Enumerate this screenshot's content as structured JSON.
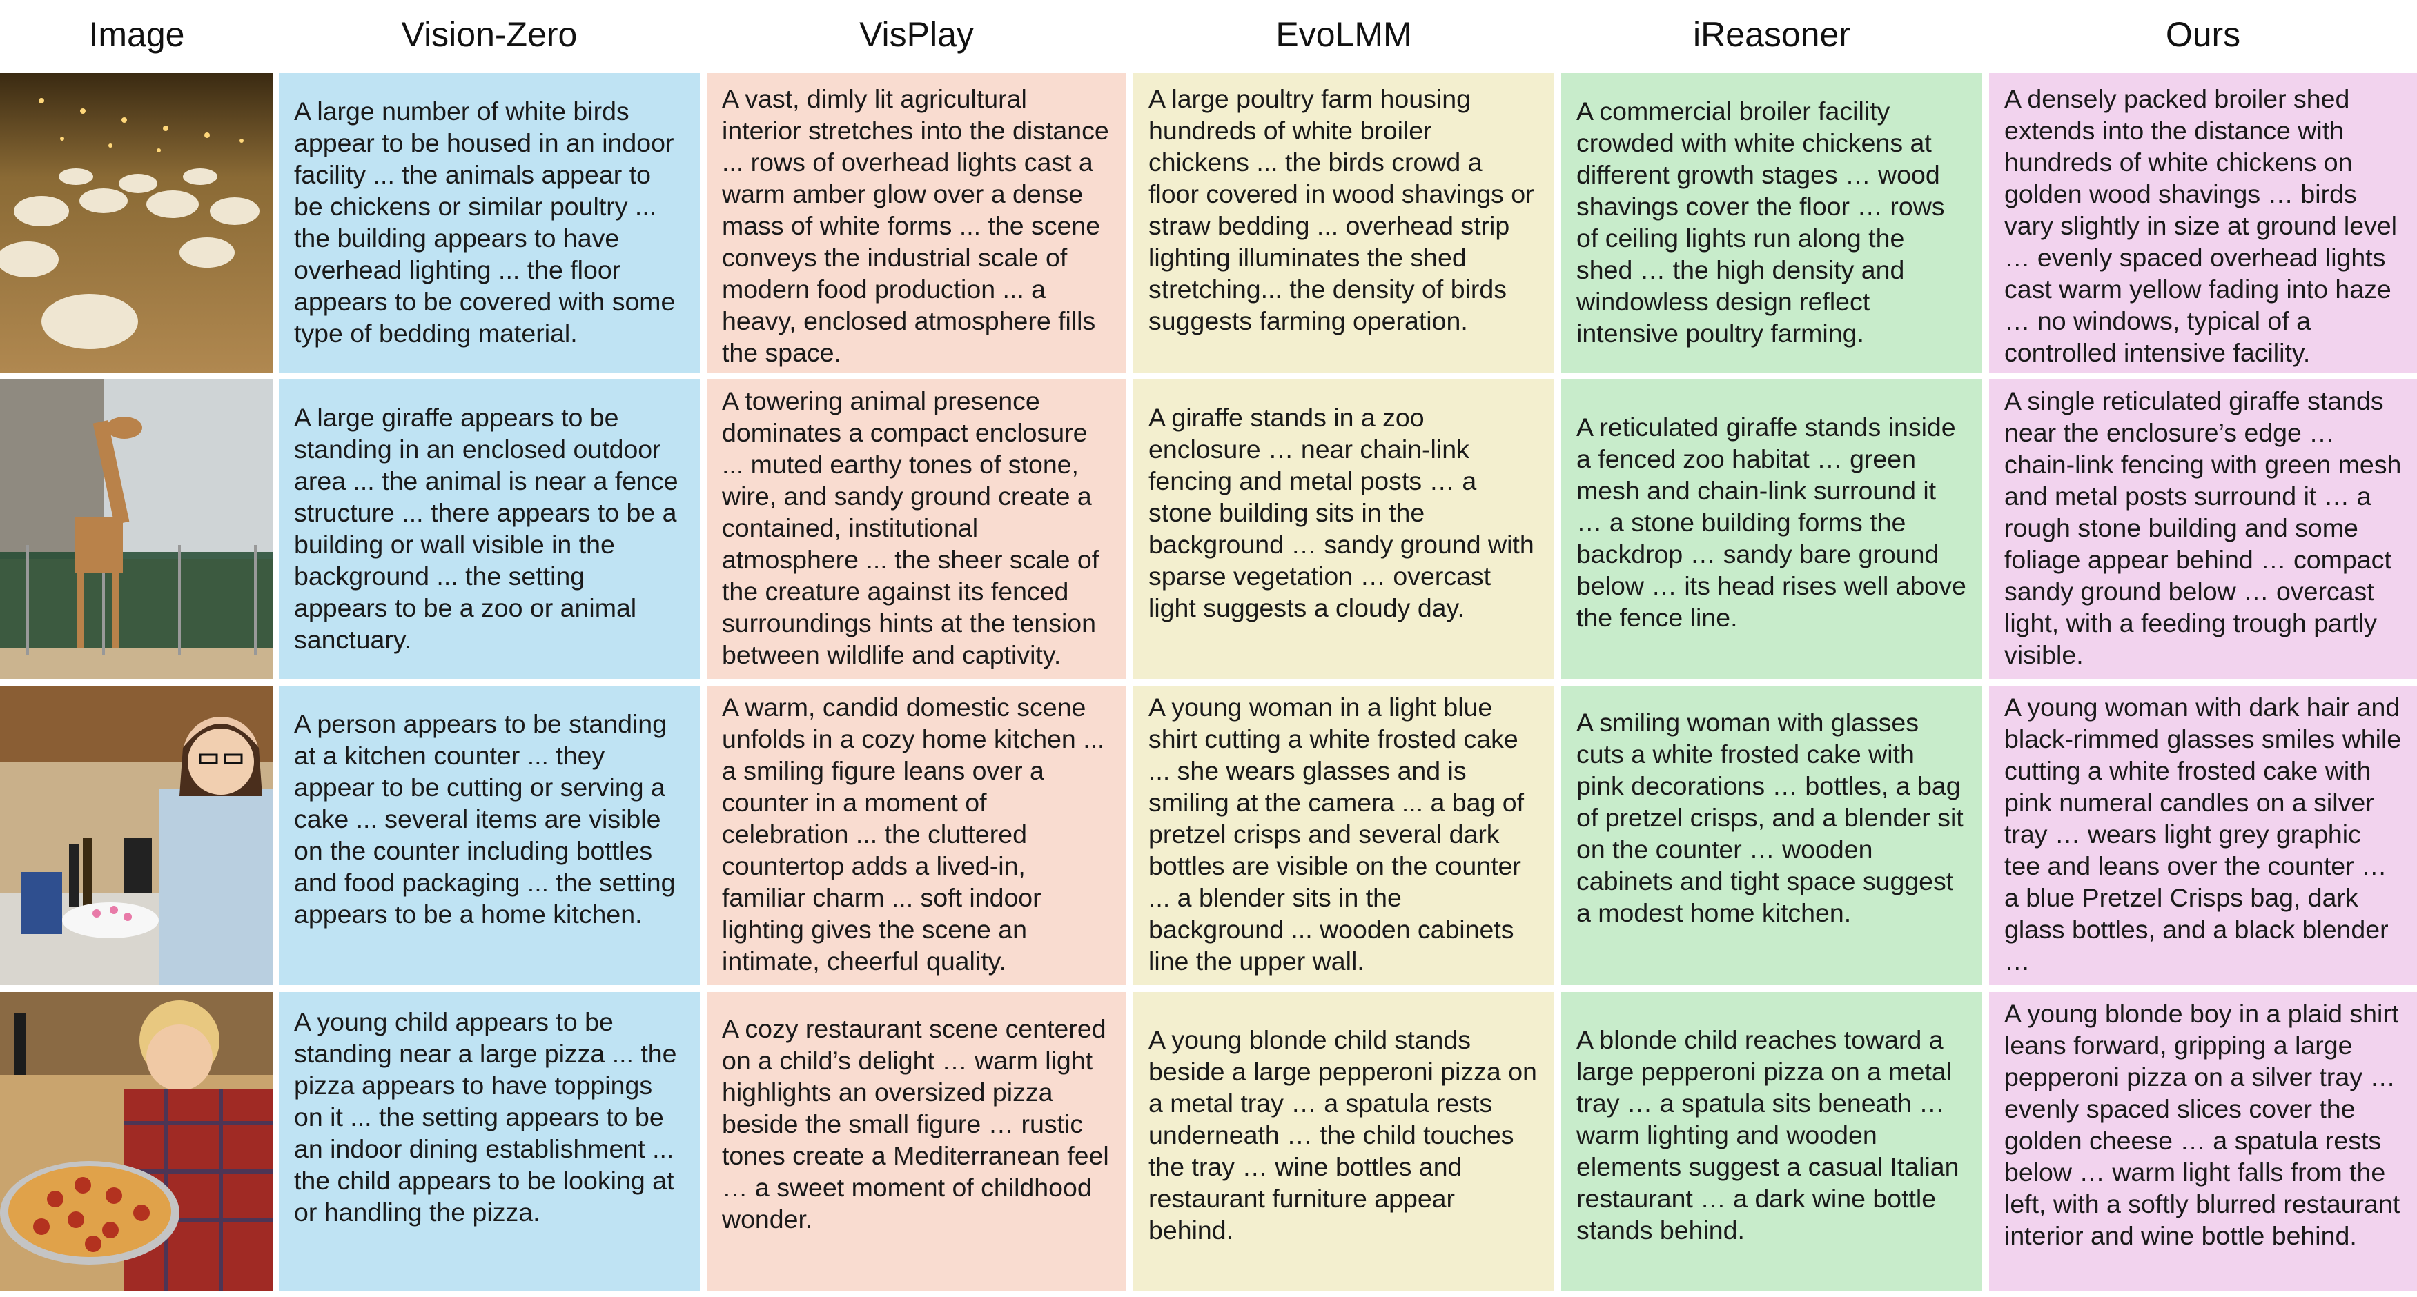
{
  "headers": [
    "Image",
    "Vision-Zero",
    "VisPlay",
    "EvoLMM",
    "iReasoner",
    "Ours"
  ],
  "colors": {
    "vision_zero": "#bfe3f3",
    "visplay": "#f9dcd0",
    "evolmm": "#f3efcf",
    "ireasoner": "#c8eccb",
    "ours": "#f2d3ee"
  },
  "rows": [
    {
      "image": "poultry-farm-photo",
      "cells": [
        "A large number of white birds appear to be housed in an indoor facility ... the animals appear to be chickens or similar poultry ... the building appears to have overhead lighting ... the floor appears to be covered with some type of bedding material.",
        "A vast, dimly lit agricultural interior stretches into the distance ... rows of overhead lights cast a warm amber glow over a dense mass of white forms ... the scene conveys the industrial scale of modern food production ... a heavy, enclosed atmosphere fills the space.",
        "A large poultry farm housing hundreds of white broiler chickens ... the birds crowd a floor covered in wood shavings or straw bedding ... overhead strip lighting illuminates the shed stretching... the density of birds suggests farming operation.",
        "A commercial broiler facility crowded with white chickens at different growth stages … wood shavings cover the floor … rows of ceiling lights run along the shed … the high density and windowless design reflect intensive poultry farming.",
        "A densely packed broiler shed extends into the distance with hundreds of white chickens on golden wood shavings … birds vary slightly in size at ground level … evenly spaced overhead lights cast warm yellow fading into haze … no windows, typical of a controlled intensive facility."
      ]
    },
    {
      "image": "giraffe-zoo-photo",
      "cells": [
        "A large giraffe appears to be standing in an enclosed outdoor area ... the animal is near a fence structure ... there appears to be a building or wall visible in the background ... the setting appears to be a zoo or animal sanctuary.",
        "A towering animal presence dominates a compact enclosure ... muted earthy tones of stone, wire, and sandy ground create a contained, institutional atmosphere ... the sheer scale of the creature against its fenced surroundings hints at the tension between wildlife and captivity.",
        "A giraffe stands in a zoo enclosure … near chain-link fencing and metal posts … a stone building sits in the background … sandy ground with sparse vegetation … overcast light suggests a cloudy day.",
        "A reticulated giraffe stands inside a fenced zoo habitat … green mesh and chain-link surround it … a stone building forms the backdrop … sandy bare ground below … its head rises well above the fence line.",
        "A single reticulated giraffe stands near the enclosure’s edge … chain-link fencing with green mesh and metal posts surround it … a rough stone building and some foliage appear behind … compact sandy ground below … overcast light, with a feeding trough partly visible."
      ]
    },
    {
      "image": "woman-cake-kitchen-photo",
      "cells": [
        "A person appears to be standing at a kitchen counter ... they appear to be cutting or serving a cake ... several items are visible on the counter including bottles and food packaging ... the setting appears to be a home kitchen.",
        "A warm, candid domestic scene unfolds in a cozy home kitchen ... a smiling figure leans over a counter in a moment of celebration ... the cluttered countertop adds a lived-in, familiar charm ... soft indoor lighting gives the scene an intimate, cheerful quality.",
        "A young woman in a light blue shirt cutting a white frosted cake ... she wears glasses and is smiling at the camera ... a bag of pretzel crisps and several dark bottles are visible on the counter ... a blender sits in the background ... wooden cabinets line the upper wall.",
        "A smiling woman with glasses cuts a white frosted cake with pink decorations … bottles, a bag of pretzel crisps, and a blender sit on the counter … wooden cabinets and tight space suggest a modest home kitchen.",
        "A young woman with dark hair and black-rimmed glasses smiles while cutting a white frosted cake with pink numeral candles on a silver tray … wears light grey graphic tee and leans over the counter … a blue Pretzel Crisps bag, dark glass bottles, and a black blender …"
      ]
    },
    {
      "image": "child-pizza-photo",
      "cells": [
        "A young child appears to be standing near a large pizza ... the pizza appears to have toppings on it ... the setting appears to be an indoor dining establishment ... the child appears to be looking at or handling the pizza.",
        "A cozy restaurant scene centered on a child’s delight … warm light highlights an oversized pizza beside the small figure … rustic tones create a Mediterranean feel … a sweet moment of childhood wonder.",
        "A young blonde child stands beside a large pepperoni pizza on a metal tray … a spatula rests underneath … the child touches the tray … wine bottles and restaurant furniture appear behind.",
        "A blonde child reaches toward a large pepperoni pizza on a metal tray … a spatula sits beneath … warm lighting and wooden elements suggest a casual Italian restaurant … a dark wine bottle stands behind.",
        "A young blonde boy in a plaid shirt leans forward, gripping a large pepperoni pizza on a silver tray … evenly spaced slices cover the golden cheese … a spatula rests below … warm light falls from the left, with a softly blurred restaurant interior and wine bottle behind."
      ]
    }
  ]
}
